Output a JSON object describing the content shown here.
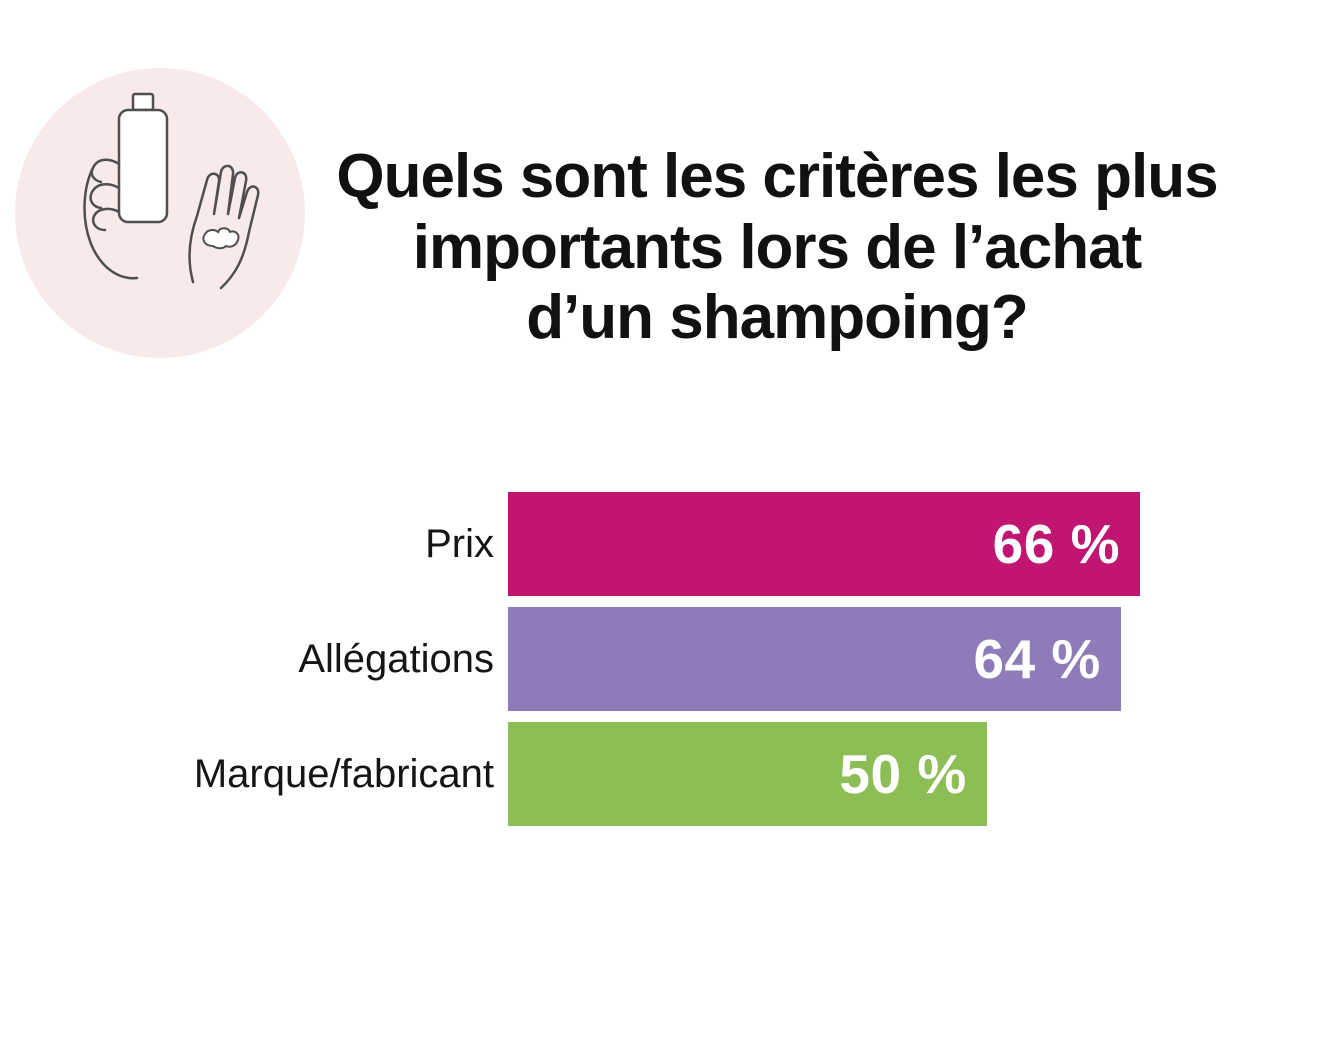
{
  "title": {
    "lines": [
      "Quels sont les critères les plus",
      "importants lors de l’achat",
      "d’un shampoing?"
    ]
  },
  "illustration": {
    "name": "shampoo-bottle-in-hands",
    "background_color": "#f8e9ea",
    "line_color": "#4f4f4f"
  },
  "chart_data": {
    "type": "bar",
    "orientation": "horizontal",
    "title": "Quels sont les critères les plus importants lors de l’achat d’un shampoing?",
    "categories": [
      "Prix",
      "Allégations",
      "Marque/fabricant"
    ],
    "values": [
      66,
      64,
      50
    ],
    "value_labels": [
      "66 %",
      "64 %",
      "50 %"
    ],
    "colors": [
      "#c11572",
      "#8e7cb8",
      "#8cbe55"
    ],
    "xlim": [
      0,
      66
    ],
    "grid": false,
    "legend": false,
    "value_label_position": "inside-end",
    "unit": "%"
  }
}
